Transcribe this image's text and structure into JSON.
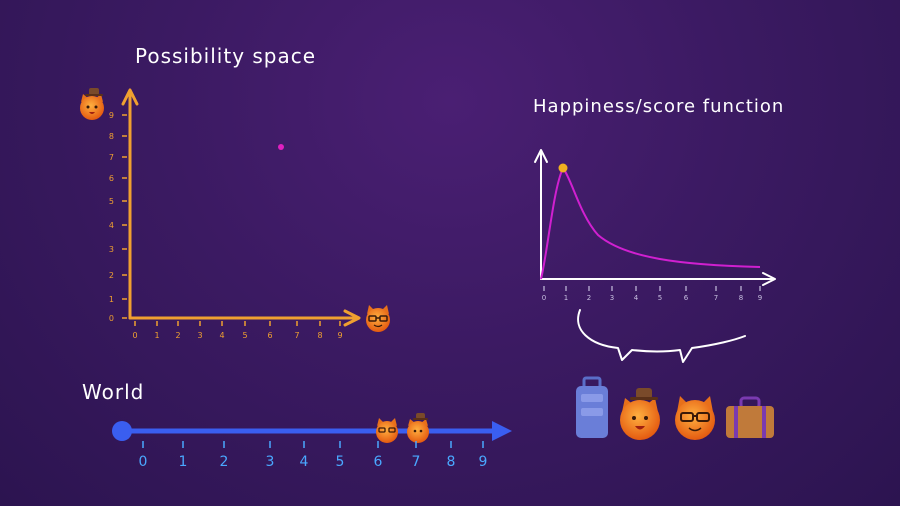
{
  "possibility_space": {
    "title": "Possibility space",
    "y_ticks": [
      "0",
      "1",
      "2",
      "3",
      "4",
      "5",
      "6",
      "7",
      "8",
      "9"
    ],
    "x_ticks": [
      "0",
      "1",
      "2",
      "3",
      "4",
      "5",
      "6",
      "7",
      "8",
      "9"
    ],
    "point": {
      "x": 6.5,
      "y": 7.2
    },
    "colors": {
      "axis": "#f0a030",
      "point": "#e020c0"
    }
  },
  "happiness": {
    "title": "Happiness/score function",
    "x_ticks": [
      "0",
      "1",
      "2",
      "3",
      "4",
      "5",
      "6",
      "7",
      "8",
      "9"
    ],
    "peak": {
      "x": 1,
      "y": 6.5
    },
    "colors": {
      "axis": "#ffffff",
      "curve": "#d020d0",
      "peak": "#f0b020"
    }
  },
  "world": {
    "title": "World",
    "ticks": [
      "0",
      "1",
      "2",
      "3",
      "4",
      "5",
      "6",
      "7",
      "8",
      "9"
    ],
    "colors": {
      "line": "#3a5ef0",
      "labels": "#4aa8ff"
    }
  },
  "items": [
    "suitcase-icon",
    "cat-with-hat-icon",
    "cat-with-glasses-icon",
    "briefcase-icon"
  ]
}
